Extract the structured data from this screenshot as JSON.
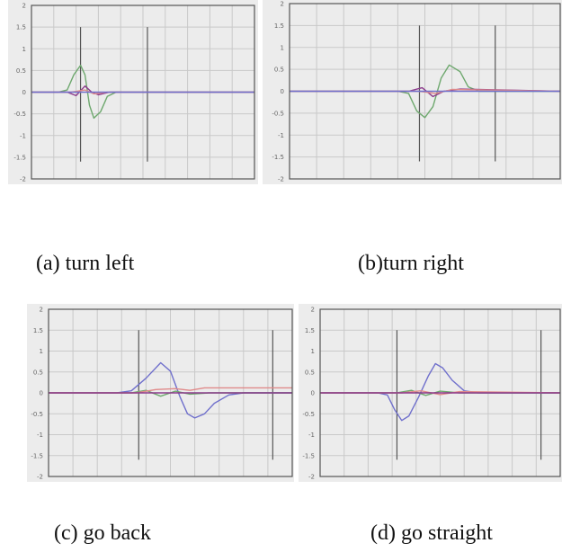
{
  "figure": {
    "captions": [
      "(a) turn left",
      "(b)turn right",
      "(c) go back",
      "(d) go  straight"
    ]
  },
  "colors": {
    "background": "#ececec",
    "grid": "#c9c9c9",
    "frame": "#555555",
    "baseline": "#b0b0b0",
    "marker": "#555555"
  },
  "chart_data": [
    {
      "type": "line",
      "title": "(a) turn left",
      "xlabel": "",
      "ylabel": "",
      "xlim": [
        0,
        100
      ],
      "ylim": [
        -2,
        2
      ],
      "ytick_labels": [
        "2",
        "1.5",
        "1",
        "0.5",
        "0",
        "-0.5",
        "-1",
        "-1.5",
        "-2"
      ],
      "grid": true,
      "markers": [
        22,
        52
      ],
      "series": [
        {
          "color": "#6ea86e",
          "x": [
            0,
            12,
            16,
            19,
            22,
            24,
            26,
            28,
            31,
            34,
            38,
            100
          ],
          "y": [
            0,
            0,
            0.05,
            0.4,
            0.62,
            0.4,
            -0.3,
            -0.6,
            -0.45,
            -0.1,
            0,
            0
          ]
        },
        {
          "color": "#8b3a8b",
          "x": [
            0,
            16,
            20,
            24,
            27,
            30,
            35,
            100
          ],
          "y": [
            0,
            0,
            -0.08,
            0.14,
            0,
            -0.06,
            0,
            0
          ]
        },
        {
          "color": "#e08a8a",
          "x": [
            0,
            18,
            24,
            28,
            34,
            100
          ],
          "y": [
            0,
            0,
            0.05,
            -0.04,
            0,
            0
          ]
        },
        {
          "color": "#7070cc",
          "x": [
            0,
            100
          ],
          "y": [
            0,
            0
          ]
        }
      ]
    },
    {
      "type": "line",
      "title": "(b)turn right",
      "xlabel": "",
      "ylabel": "",
      "xlim": [
        0,
        100
      ],
      "ylim": [
        -2,
        2
      ],
      "ytick_labels": [
        "2",
        "1.5",
        "1",
        "0.5",
        "0",
        "-0.5",
        "-1",
        "-1.5",
        "-2"
      ],
      "grid": true,
      "markers": [
        48,
        76
      ],
      "series": [
        {
          "color": "#6ea86e",
          "x": [
            0,
            40,
            44,
            47,
            50,
            53,
            56,
            59,
            63,
            66,
            70,
            100
          ],
          "y": [
            0,
            0,
            -0.05,
            -0.45,
            -0.6,
            -0.35,
            0.3,
            0.6,
            0.45,
            0.1,
            0,
            0
          ]
        },
        {
          "color": "#8b3a8b",
          "x": [
            0,
            44,
            49,
            53,
            57,
            63,
            100
          ],
          "y": [
            0,
            0,
            0.08,
            -0.12,
            0,
            0.05,
            0
          ]
        },
        {
          "color": "#e08a8a",
          "x": [
            0,
            48,
            54,
            60,
            100
          ],
          "y": [
            0,
            0,
            -0.05,
            0.04,
            0
          ]
        },
        {
          "color": "#7070cc",
          "x": [
            0,
            100
          ],
          "y": [
            0,
            0
          ]
        }
      ]
    },
    {
      "type": "line",
      "title": "(c) go back",
      "xlabel": "",
      "ylabel": "",
      "xlim": [
        0,
        100
      ],
      "ylim": [
        -2,
        2
      ],
      "ytick_labels": [
        "2",
        "1.5",
        "1",
        "0.5",
        "0",
        "-0.5",
        "-1",
        "-1.5",
        "-2"
      ],
      "grid": true,
      "markers": [
        37,
        92
      ],
      "series": [
        {
          "color": "#7070cc",
          "x": [
            0,
            28,
            34,
            40,
            46,
            50,
            54,
            57,
            60,
            64,
            68,
            74,
            80,
            100
          ],
          "y": [
            0,
            0,
            0.05,
            0.35,
            0.72,
            0.52,
            -0.1,
            -0.5,
            -0.6,
            -0.5,
            -0.25,
            -0.05,
            0,
            0
          ]
        },
        {
          "color": "#6ea86e",
          "x": [
            0,
            34,
            40,
            46,
            52,
            58,
            66,
            100
          ],
          "y": [
            0,
            0,
            0.06,
            -0.08,
            0.04,
            -0.03,
            0,
            0
          ]
        },
        {
          "color": "#e08a8a",
          "x": [
            0,
            36,
            44,
            52,
            58,
            64,
            100
          ],
          "y": [
            0,
            0,
            0.08,
            0.1,
            0.06,
            0.12,
            0.12
          ]
        },
        {
          "color": "#8b3a8b",
          "x": [
            0,
            100
          ],
          "y": [
            0,
            0
          ]
        }
      ]
    },
    {
      "type": "line",
      "title": "(d) go  straight",
      "xlabel": "",
      "ylabel": "",
      "xlim": [
        0,
        100
      ],
      "ylim": [
        -2,
        2
      ],
      "ytick_labels": [
        "2",
        "1.5",
        "1",
        "0.5",
        "0",
        "-0.5",
        "-1",
        "-1.5",
        "-2"
      ],
      "grid": true,
      "markers": [
        32,
        92
      ],
      "series": [
        {
          "color": "#7070cc",
          "x": [
            0,
            24,
            28,
            31,
            34,
            37,
            41,
            45,
            48,
            51,
            55,
            60,
            66,
            72,
            100
          ],
          "y": [
            0,
            0,
            -0.05,
            -0.4,
            -0.66,
            -0.55,
            -0.1,
            0.4,
            0.7,
            0.6,
            0.3,
            0.05,
            0,
            0,
            0
          ]
        },
        {
          "color": "#6ea86e",
          "x": [
            0,
            32,
            38,
            44,
            50,
            58,
            100
          ],
          "y": [
            0,
            0,
            0.06,
            -0.06,
            0.04,
            0,
            0
          ]
        },
        {
          "color": "#e08a8a",
          "x": [
            0,
            34,
            42,
            50,
            58,
            100
          ],
          "y": [
            0,
            0,
            0.05,
            -0.04,
            0.03,
            0
          ]
        },
        {
          "color": "#8b3a8b",
          "x": [
            0,
            100
          ],
          "y": [
            0,
            0
          ]
        }
      ]
    }
  ]
}
